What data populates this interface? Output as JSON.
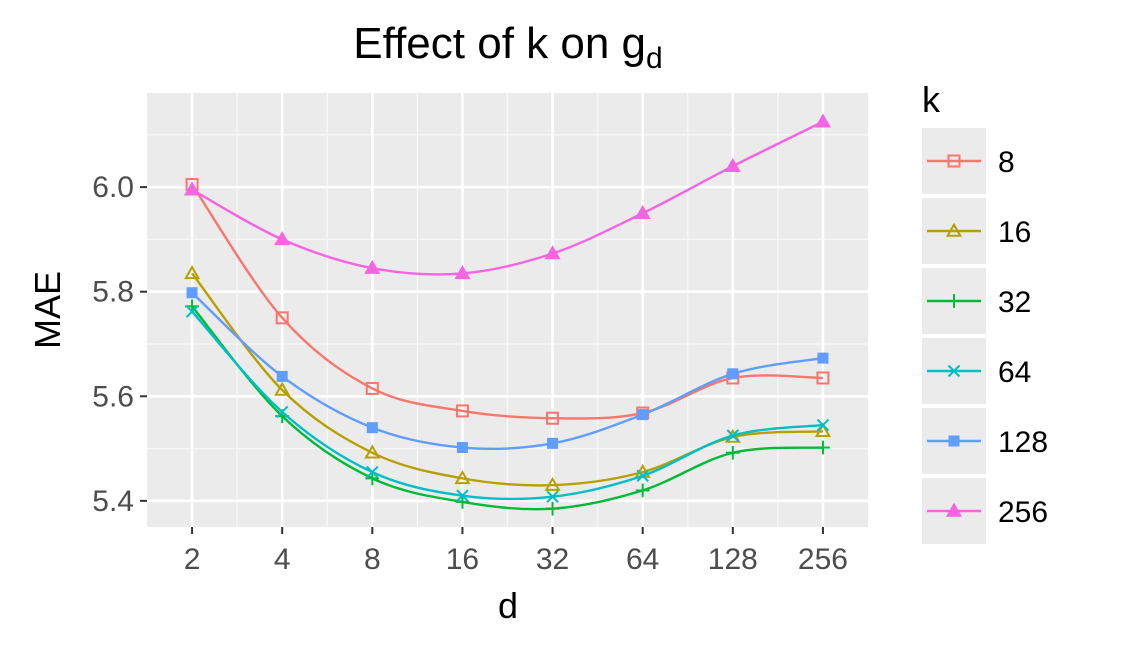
{
  "chart_data": {
    "type": "line",
    "title": "Effect of k on g",
    "title_subscript": "d",
    "xlabel": "d",
    "ylabel": "MAE",
    "x": [
      "2",
      "4",
      "8",
      "16",
      "32",
      "64",
      "128",
      "256"
    ],
    "yticks": [
      "5.4",
      "5.6",
      "5.8",
      "6.0"
    ],
    "ylim": [
      5.35,
      6.18
    ],
    "grid": true,
    "legend": {
      "title": "k",
      "position": "right"
    },
    "series": [
      {
        "name": "8",
        "color": "#F8766D",
        "marker": "open-square",
        "values": [
          6.005,
          5.75,
          5.615,
          5.572,
          5.558,
          5.568,
          5.635,
          5.635
        ]
      },
      {
        "name": "16",
        "color": "#B79F00",
        "marker": "open-triangle",
        "values": [
          5.835,
          5.612,
          5.492,
          5.443,
          5.43,
          5.455,
          5.522,
          5.533
        ]
      },
      {
        "name": "32",
        "color": "#00BA38",
        "marker": "plus",
        "values": [
          5.772,
          5.562,
          5.443,
          5.398,
          5.385,
          5.42,
          5.492,
          5.502
        ]
      },
      {
        "name": "64",
        "color": "#00BFC4",
        "marker": "cross",
        "values": [
          5.762,
          5.57,
          5.455,
          5.41,
          5.408,
          5.448,
          5.525,
          5.545
        ]
      },
      {
        "name": "128",
        "color": "#619CFF",
        "marker": "filled-square",
        "values": [
          5.798,
          5.638,
          5.54,
          5.502,
          5.51,
          5.565,
          5.643,
          5.673
        ]
      },
      {
        "name": "256",
        "color": "#F564E3",
        "marker": "filled-triangle",
        "values": [
          5.995,
          5.9,
          5.845,
          5.835,
          5.873,
          5.95,
          6.04,
          6.125
        ]
      }
    ]
  }
}
